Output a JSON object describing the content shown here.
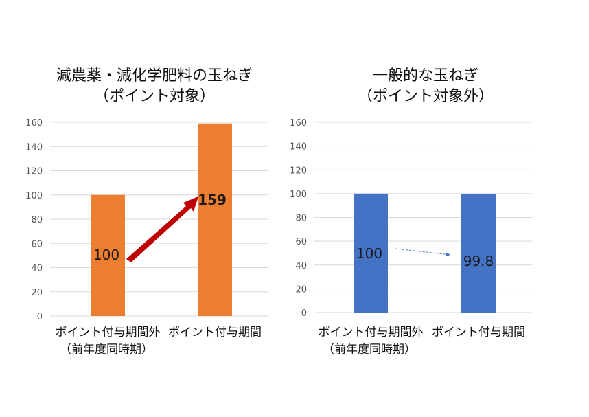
{
  "chart_data": [
    {
      "type": "bar",
      "title": "減農薬・減化学肥料の玉ねぎ",
      "subtitle": "（ポイント対象）",
      "categories": [
        [
          "ポイント付与期間外",
          "（前年度同時期）"
        ],
        [
          "ポイント付与期間"
        ]
      ],
      "values": [
        100,
        159
      ],
      "data_labels": [
        "100",
        "159"
      ],
      "ylim": [
        0,
        160
      ],
      "yticks": [
        "0",
        "20",
        "40",
        "60",
        "80",
        "100",
        "120",
        "140",
        "160"
      ],
      "grid": true,
      "bar_color": "#ED7D31",
      "arrow_color": "#C00000"
    },
    {
      "type": "bar",
      "title": "一般的な玉ねぎ",
      "subtitle": "（ポイント対象外）",
      "categories": [
        [
          "ポイント付与期間外",
          "（前年度同時期）"
        ],
        [
          "ポイント付与期間"
        ]
      ],
      "values": [
        100,
        99.8
      ],
      "data_labels": [
        "100",
        "99.8"
      ],
      "ylim": [
        0,
        160
      ],
      "yticks": [
        "0",
        "20",
        "40",
        "60",
        "80",
        "100",
        "120",
        "140",
        "160"
      ],
      "grid": true,
      "bar_color": "#4472C4",
      "arrow_color": "#4472C4"
    }
  ]
}
